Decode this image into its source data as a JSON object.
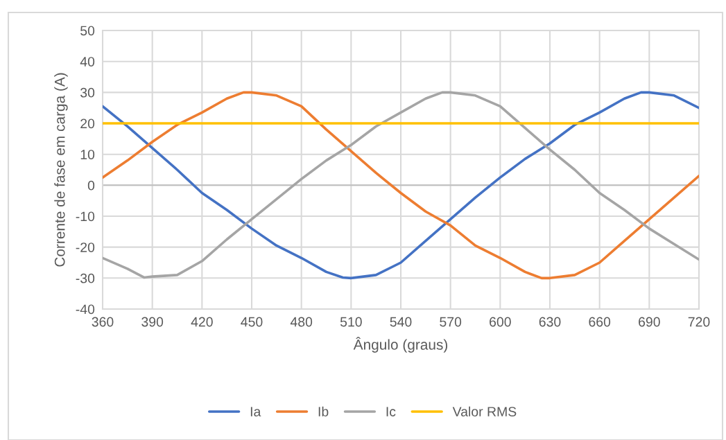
{
  "chart_data": {
    "type": "line",
    "xlabel": "Ângulo (graus)",
    "ylabel": "Corrente de fase em carga (A)",
    "xlim": [
      360,
      720
    ],
    "xticks": [
      360,
      390,
      420,
      450,
      480,
      510,
      540,
      570,
      600,
      630,
      660,
      690,
      720
    ],
    "ylim": [
      -40,
      50
    ],
    "yticks": [
      -40,
      -30,
      -20,
      -10,
      0,
      10,
      20,
      30,
      40,
      50
    ],
    "grid": true,
    "legend": "bottom",
    "marker": "none",
    "line_style": "solid",
    "series": [
      {
        "name": "Ia",
        "color": "#4472c4",
        "x": [
          360,
          375,
          390,
          405,
          420,
          435,
          450,
          465,
          480,
          495,
          505,
          510,
          525,
          540,
          555,
          570,
          585,
          600,
          615,
          630,
          645,
          660,
          675,
          685,
          690,
          705,
          720
        ],
        "values": [
          25.5,
          19,
          12,
          5,
          -2.5,
          -8,
          -14,
          -19.5,
          -23.5,
          -28,
          -29.8,
          -30,
          -29,
          -25,
          -18,
          -11,
          -4,
          2.5,
          8.5,
          13.5,
          19.5,
          23.5,
          28,
          30,
          30,
          29,
          25
        ]
      },
      {
        "name": "Ib",
        "color": "#ed7d31",
        "x": [
          360,
          375,
          390,
          405,
          420,
          435,
          445,
          450,
          465,
          480,
          495,
          510,
          525,
          540,
          555,
          570,
          585,
          600,
          615,
          625,
          630,
          645,
          660,
          675,
          690,
          705,
          720
        ],
        "values": [
          2.5,
          8,
          14,
          19.5,
          23.5,
          28,
          30,
          30,
          29,
          25.5,
          18,
          11,
          4,
          -2.5,
          -8.5,
          -13,
          -19.5,
          -23.5,
          -28,
          -30,
          -30,
          -29,
          -25,
          -18,
          -11,
          -4,
          3
        ]
      },
      {
        "name": "Ic",
        "color": "#a5a5a5",
        "x": [
          360,
          375,
          385,
          390,
          405,
          420,
          435,
          450,
          465,
          480,
          495,
          510,
          525,
          540,
          555,
          565,
          570,
          585,
          600,
          615,
          630,
          645,
          660,
          675,
          690,
          705,
          720
        ],
        "values": [
          -23.5,
          -27,
          -29.8,
          -29.5,
          -29,
          -24.5,
          -17.5,
          -11,
          -4.5,
          2,
          8,
          13,
          19,
          23.5,
          28,
          30,
          30,
          29,
          25.5,
          18.5,
          11.5,
          5,
          -2.5,
          -8,
          -14,
          -19,
          -24
        ]
      },
      {
        "name": "Valor RMS",
        "color": "#ffc000",
        "x": [
          360,
          720
        ],
        "values": [
          20,
          20
        ]
      }
    ]
  }
}
